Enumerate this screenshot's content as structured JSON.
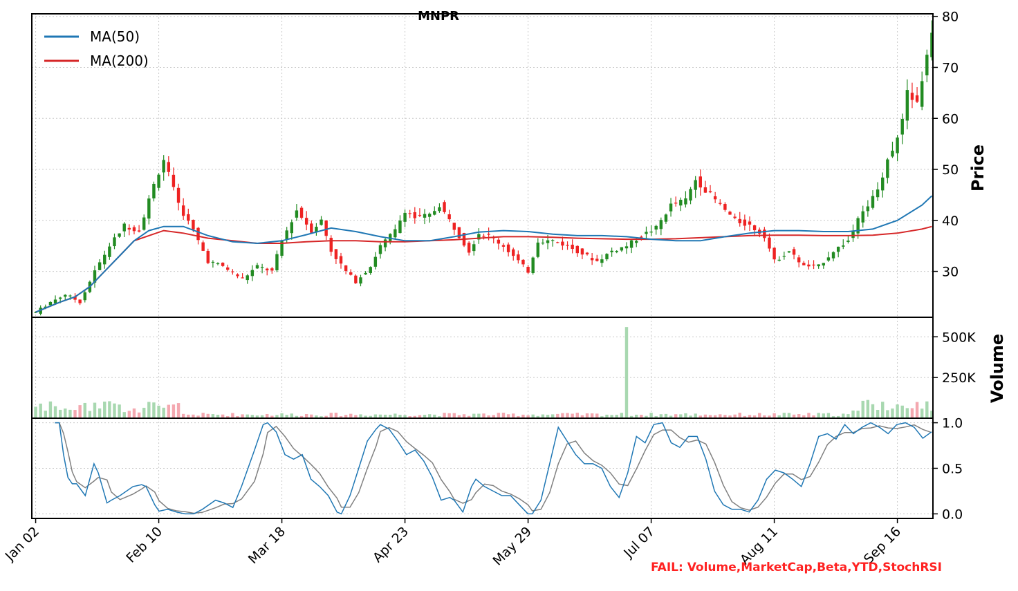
{
  "chart_data": {
    "type": "candlestick",
    "title": "MNPR",
    "x_tick_labels": [
      "Jan 02",
      "Feb 10",
      "Mar 18",
      "Apr 23",
      "May 29",
      "Jul 07",
      "Aug 11",
      "Sep 16"
    ],
    "x_tick_positions": [
      0,
      25,
      50,
      75,
      100,
      125,
      150,
      175
    ],
    "n_sessions": 183,
    "price_panel": {
      "ylabel": "Price",
      "ylim": [
        21,
        80.5
      ],
      "yticks": [
        30,
        40,
        50,
        60,
        70,
        80
      ],
      "close_series": [
        [
          0,
          22
        ],
        [
          3,
          24
        ],
        [
          6,
          25.5
        ],
        [
          9,
          24
        ],
        [
          12,
          30
        ],
        [
          15,
          35
        ],
        [
          18,
          39
        ],
        [
          21,
          38
        ],
        [
          24,
          47
        ],
        [
          26,
          52
        ],
        [
          27,
          49
        ],
        [
          29,
          43
        ],
        [
          32,
          38
        ],
        [
          35,
          32
        ],
        [
          38,
          31
        ],
        [
          42,
          28.5
        ],
        [
          45,
          31
        ],
        [
          48,
          30
        ],
        [
          50,
          36
        ],
        [
          53,
          42
        ],
        [
          56,
          38
        ],
        [
          58,
          40
        ],
        [
          60,
          34
        ],
        [
          63,
          30
        ],
        [
          65,
          28
        ],
        [
          68,
          31
        ],
        [
          70,
          35
        ],
        [
          73,
          38
        ],
        [
          75,
          42
        ],
        [
          77,
          40.5
        ],
        [
          80,
          41
        ],
        [
          82,
          43
        ],
        [
          84,
          40
        ],
        [
          86,
          37
        ],
        [
          88,
          34
        ],
        [
          90,
          37.5
        ],
        [
          92,
          37
        ],
        [
          95,
          35
        ],
        [
          97,
          33
        ],
        [
          100,
          30
        ],
        [
          102,
          36
        ],
        [
          105,
          36
        ],
        [
          108,
          35
        ],
        [
          111,
          33.5
        ],
        [
          114,
          32
        ],
        [
          117,
          34
        ],
        [
          120,
          35
        ],
        [
          123,
          37
        ],
        [
          126,
          38.5
        ],
        [
          129,
          43
        ],
        [
          132,
          44
        ],
        [
          134,
          48
        ],
        [
          136,
          46
        ],
        [
          138,
          44
        ],
        [
          140,
          42
        ],
        [
          142,
          40
        ],
        [
          145,
          39
        ],
        [
          148,
          37
        ],
        [
          150,
          32
        ],
        [
          153,
          34
        ],
        [
          156,
          31
        ],
        [
          159,
          31
        ],
        [
          162,
          34
        ],
        [
          165,
          36
        ],
        [
          167,
          40
        ],
        [
          169,
          43
        ],
        [
          171,
          46
        ],
        [
          173,
          52
        ],
        [
          175,
          56
        ],
        [
          177,
          65
        ],
        [
          179,
          63
        ],
        [
          181,
          72
        ],
        [
          182,
          77.5
        ]
      ],
      "ma50": [
        [
          0,
          22
        ],
        [
          5,
          24
        ],
        [
          8,
          25
        ],
        [
          11,
          27
        ],
        [
          14,
          30
        ],
        [
          17,
          33
        ],
        [
          20,
          36
        ],
        [
          23,
          38
        ],
        [
          26,
          38.8
        ],
        [
          30,
          38.8
        ],
        [
          35,
          37
        ],
        [
          40,
          35.8
        ],
        [
          45,
          35.5
        ],
        [
          50,
          36
        ],
        [
          55,
          37.2
        ],
        [
          60,
          38.5
        ],
        [
          65,
          37.8
        ],
        [
          70,
          36.8
        ],
        [
          75,
          36
        ],
        [
          80,
          36
        ],
        [
          85,
          36.8
        ],
        [
          90,
          37.7
        ],
        [
          95,
          38
        ],
        [
          100,
          37.8
        ],
        [
          105,
          37.3
        ],
        [
          110,
          37
        ],
        [
          115,
          37
        ],
        [
          120,
          36.8
        ],
        [
          125,
          36.3
        ],
        [
          130,
          36
        ],
        [
          135,
          36
        ],
        [
          140,
          36.8
        ],
        [
          145,
          37.5
        ],
        [
          150,
          38
        ],
        [
          155,
          38
        ],
        [
          160,
          37.8
        ],
        [
          165,
          37.8
        ],
        [
          170,
          38.3
        ],
        [
          175,
          40
        ],
        [
          180,
          43
        ],
        [
          182,
          44.8
        ]
      ],
      "ma200": [
        [
          0,
          22
        ],
        [
          5,
          24
        ],
        [
          8,
          25
        ],
        [
          11,
          27
        ],
        [
          14,
          30
        ],
        [
          17,
          33
        ],
        [
          20,
          36
        ],
        [
          23,
          37
        ],
        [
          26,
          38
        ],
        [
          30,
          37.5
        ],
        [
          35,
          36.5
        ],
        [
          40,
          36
        ],
        [
          45,
          35.5
        ],
        [
          50,
          35.5
        ],
        [
          55,
          35.8
        ],
        [
          60,
          36
        ],
        [
          65,
          36
        ],
        [
          70,
          35.8
        ],
        [
          75,
          35.8
        ],
        [
          80,
          36
        ],
        [
          85,
          36.2
        ],
        [
          90,
          36.5
        ],
        [
          95,
          36.8
        ],
        [
          100,
          36.8
        ],
        [
          105,
          36.7
        ],
        [
          110,
          36.5
        ],
        [
          115,
          36.4
        ],
        [
          120,
          36.3
        ],
        [
          125,
          36.3
        ],
        [
          130,
          36.4
        ],
        [
          135,
          36.6
        ],
        [
          140,
          36.8
        ],
        [
          145,
          37
        ],
        [
          150,
          37.1
        ],
        [
          155,
          37.1
        ],
        [
          160,
          37
        ],
        [
          165,
          37
        ],
        [
          170,
          37.1
        ],
        [
          175,
          37.5
        ],
        [
          180,
          38.3
        ],
        [
          182,
          38.8
        ]
      ]
    },
    "volume_panel": {
      "ylabel": "Volume",
      "ylim": [
        0,
        620000
      ],
      "yticks": [
        250000,
        500000
      ],
      "ytick_labels": [
        "250K",
        "500K"
      ],
      "spike": {
        "x": 120,
        "volume": 560000
      }
    },
    "stoch_panel": {
      "ylim": [
        -0.05,
        1.05
      ],
      "yticks": [
        0.0,
        0.5,
        1.0
      ],
      "ytick_labels": [
        "0.0",
        "0.5",
        "1.0"
      ],
      "k": [
        [
          5,
          1
        ],
        [
          6,
          1
        ],
        [
          7,
          0.65
        ],
        [
          8,
          0.4
        ],
        [
          9,
          0.33
        ],
        [
          10,
          0.33
        ],
        [
          12,
          0.2
        ],
        [
          14,
          0.55
        ],
        [
          15,
          0.45
        ],
        [
          17,
          0.12
        ],
        [
          18,
          0.15
        ],
        [
          20,
          0.2
        ],
        [
          23,
          0.3
        ],
        [
          25,
          0.32
        ],
        [
          26,
          0.3
        ],
        [
          28,
          0.1
        ],
        [
          29,
          0.03
        ],
        [
          31,
          0.05
        ],
        [
          33,
          0.02
        ],
        [
          35,
          0
        ],
        [
          37,
          0
        ],
        [
          39,
          0.05
        ],
        [
          42,
          0.15
        ],
        [
          44,
          0.12
        ],
        [
          46,
          0.07
        ],
        [
          48,
          0.3
        ],
        [
          51,
          0.7
        ],
        [
          53,
          0.98
        ],
        [
          54,
          1
        ],
        [
          56,
          0.9
        ],
        [
          58,
          0.65
        ],
        [
          60,
          0.6
        ],
        [
          62,
          0.65
        ],
        [
          64,
          0.38
        ],
        [
          66,
          0.3
        ],
        [
          68,
          0.2
        ],
        [
          70,
          0.02
        ],
        [
          71,
          0
        ],
        [
          73,
          0.2
        ],
        [
          75,
          0.5
        ],
        [
          77,
          0.8
        ],
        [
          79,
          0.93
        ],
        [
          80,
          0.98
        ],
        [
          82,
          0.93
        ],
        [
          84,
          0.8
        ],
        [
          86,
          0.65
        ],
        [
          88,
          0.7
        ],
        [
          90,
          0.58
        ],
        [
          92,
          0.4
        ],
        [
          94,
          0.15
        ],
        [
          96,
          0.18
        ],
        [
          97,
          0.15
        ],
        [
          99,
          0.02
        ],
        [
          101,
          0.3
        ],
        [
          102,
          0.38
        ],
        [
          104,
          0.3
        ],
        [
          106,
          0.25
        ],
        [
          108,
          0.2
        ],
        [
          110,
          0.2
        ],
        [
          112,
          0.1
        ],
        [
          114,
          0
        ],
        [
          115,
          0
        ],
        [
          117,
          0.15
        ],
        [
          119,
          0.55
        ],
        [
          121,
          0.95
        ],
        [
          123,
          0.8
        ],
        [
          125,
          0.65
        ],
        [
          127,
          0.55
        ],
        [
          129,
          0.55
        ],
        [
          131,
          0.5
        ],
        [
          133,
          0.3
        ],
        [
          135,
          0.18
        ],
        [
          137,
          0.45
        ],
        [
          139,
          0.85
        ],
        [
          141,
          0.78
        ],
        [
          143,
          0.98
        ],
        [
          145,
          1
        ],
        [
          147,
          0.78
        ],
        [
          149,
          0.73
        ],
        [
          151,
          0.85
        ],
        [
          153,
          0.85
        ],
        [
          155,
          0.6
        ],
        [
          157,
          0.25
        ],
        [
          159,
          0.1
        ],
        [
          161,
          0.05
        ],
        [
          163,
          0.05
        ],
        [
          165,
          0.02
        ],
        [
          167,
          0.15
        ],
        [
          169,
          0.38
        ],
        [
          171,
          0.48
        ],
        [
          173,
          0.45
        ],
        [
          175,
          0.38
        ],
        [
          177,
          0.3
        ],
        [
          179,
          0.55
        ],
        [
          181,
          0.85
        ],
        [
          183,
          0.88
        ],
        [
          185,
          0.82
        ],
        [
          187,
          0.98
        ],
        [
          189,
          0.88
        ],
        [
          191,
          0.95
        ],
        [
          193,
          1
        ],
        [
          195,
          0.95
        ],
        [
          197,
          0.88
        ],
        [
          199,
          0.98
        ],
        [
          201,
          1
        ],
        [
          203,
          0.95
        ],
        [
          205,
          0.83
        ],
        [
          207,
          0.9
        ]
      ]
    }
  },
  "footer": {
    "status": "FAIL: Volume,MarketCap,Beta,YTD,StochRSI"
  },
  "legend": {
    "items": [
      {
        "label": "MA(50)",
        "color": "#1f77b4"
      },
      {
        "label": "MA(200)",
        "color": "#d62728"
      }
    ]
  },
  "colors": {
    "up": "#228b22",
    "down": "#ee2222",
    "vol_up": "#a8d8b0",
    "vol_down": "#f4a8b0",
    "ma50": "#1f77b4",
    "ma200": "#d62728",
    "stoch_k": "#1f77b4",
    "stoch_d": "#808080"
  }
}
